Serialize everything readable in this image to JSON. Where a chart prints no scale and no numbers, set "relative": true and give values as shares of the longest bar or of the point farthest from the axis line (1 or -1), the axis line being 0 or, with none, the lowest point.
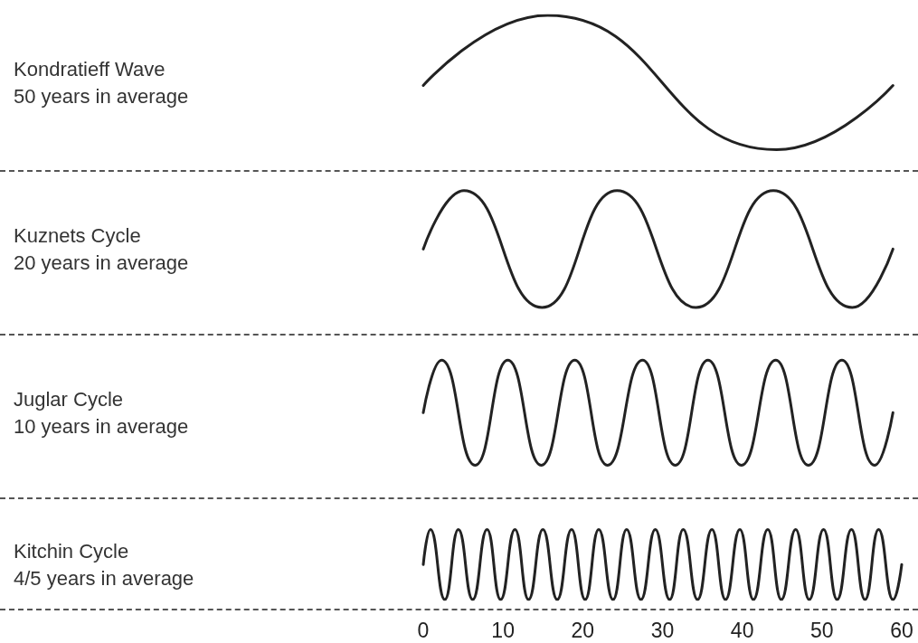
{
  "chart_data": {
    "type": "line",
    "relative": true,
    "xlim": [
      0,
      60
    ],
    "xticks": [
      0,
      10,
      20,
      30,
      40,
      50,
      60
    ],
    "tick_labels": "x",
    "annotations": [
      "Kondratieff Wave",
      "50 years in average",
      "Kuznets Cycle",
      "20 years in average",
      "Juglar Cycle",
      "10 years in average",
      "Kitchin Cycle",
      "4/5 years in average"
    ],
    "series": [
      {
        "color": "#222222",
        "x": [
          0,
          15.6,
          44.3,
          58.9
        ],
        "values": [
          0.88,
          1,
          0.77,
          0.88
        ]
      },
      {
        "color": "#222222",
        "x": [
          0,
          5.1,
          14.9,
          24.3,
          34.2,
          43.9,
          53.8,
          58.9
        ],
        "values": [
          0.6,
          0.7,
          0.5,
          0.7,
          0.5,
          0.7,
          0.5,
          0.6
        ]
      },
      {
        "color": "#222222",
        "x": [
          0,
          2.3,
          6.5,
          10.6,
          14.8,
          19.0,
          23.1,
          27.5,
          31.6,
          35.7,
          39.9,
          44.2,
          48.3,
          52.5,
          56.6,
          58.9
        ],
        "values": [
          0.32,
          0.41,
          0.23,
          0.41,
          0.23,
          0.41,
          0.23,
          0.41,
          0.23,
          0.41,
          0.23,
          0.41,
          0.23,
          0.41,
          0.23,
          0.32
        ]
      },
      {
        "color": "#222222",
        "x": [
          0,
          0.9,
          2.7,
          4.4,
          6.2,
          8.0,
          9.7,
          11.5,
          13.2,
          15.0,
          16.8,
          18.6,
          20.3,
          22.0,
          23.8,
          25.5,
          27.3,
          29.1,
          30.9,
          32.6,
          34.4,
          36.2,
          37.9,
          39.7,
          41.4,
          43.2,
          44.9,
          46.7,
          48.4,
          50.2,
          51.9,
          53.7,
          55.4,
          57.1,
          58.9,
          60
        ],
        "values": [
          0.06,
          0.12,
          0,
          0.12,
          0,
          0.12,
          0,
          0.12,
          0,
          0.12,
          0,
          0.12,
          0,
          0.12,
          0,
          0.12,
          0,
          0.12,
          0,
          0.12,
          0,
          0.12,
          0,
          0.12,
          0,
          0.12,
          0,
          0.12,
          0,
          0.12,
          0,
          0.12,
          0,
          0.12,
          0,
          0.06
        ]
      }
    ]
  }
}
